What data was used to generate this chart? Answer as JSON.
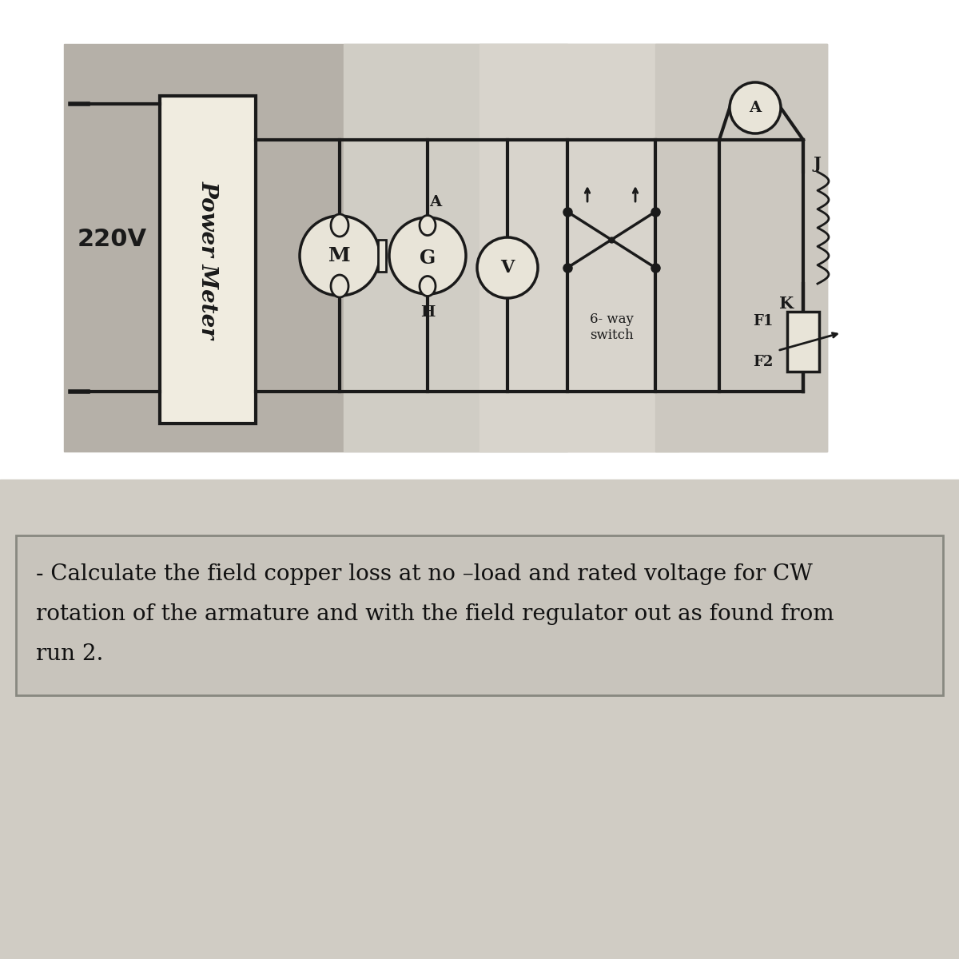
{
  "bg_full": "#d8d4cc",
  "bg_photo_left": "#b0aca4",
  "bg_photo_mid": "#d0cdc6",
  "bg_photo_right": "#c8c5be",
  "bg_photo_far_right": "#d4d0c8",
  "photo_border_color": "#5a5650",
  "line_color": "#1a1a1a",
  "pm_box_fill": "#f0ece0",
  "circle_fill": "#e8e4d8",
  "label_220v": "220V",
  "label_power_meter": "Power Meter",
  "label_M": "M",
  "label_G": "G",
  "label_A_gen": "A",
  "label_H": "H",
  "label_V": "V",
  "label_6way_line1": "6- way",
  "label_6way_line2": "switch",
  "label_A_ammeter": "A",
  "label_J": "J",
  "label_K": "K",
  "label_F1": "F1",
  "label_F2": "F2",
  "bottom_bg": "#c0bcb4",
  "bottom_text_bg": "#b8b4ac",
  "bottom_text_line1": "- Calculate the field copper loss at no –load and rated voltage for CW",
  "bottom_text_line2": "rotation of the armature and with the field regulator out as found from",
  "bottom_text_line3": "run 2.",
  "white_bg": "#ffffff"
}
